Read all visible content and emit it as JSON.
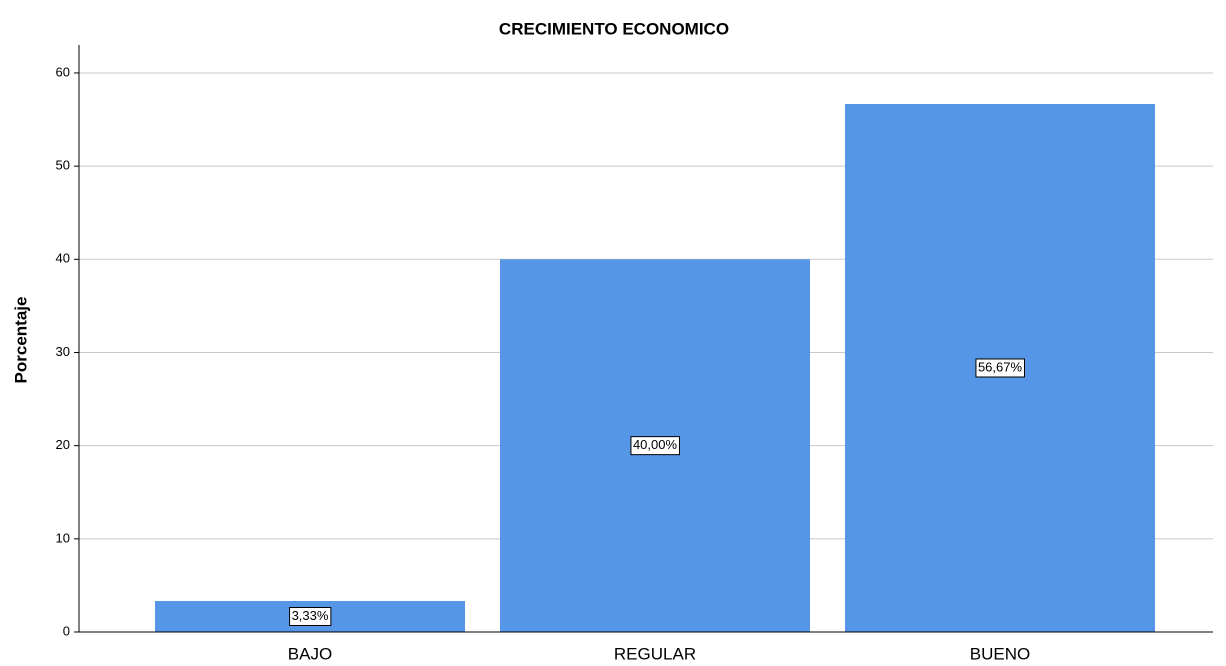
{
  "chart_data": {
    "type": "bar",
    "title": "CRECIMIENTO ECONOMICO",
    "y_label": "Porcentaje",
    "categories": [
      "BAJO",
      "REGULAR",
      "BUENO"
    ],
    "values": [
      3.33,
      40,
      56.67
    ],
    "value_labels": [
      "3,33%",
      "40,00%",
      "56,67%"
    ],
    "color": "#5596e6",
    "ylim": [
      0,
      63
    ],
    "yticks": [
      0,
      10,
      20,
      30,
      40,
      50,
      60
    ],
    "grid": true
  }
}
